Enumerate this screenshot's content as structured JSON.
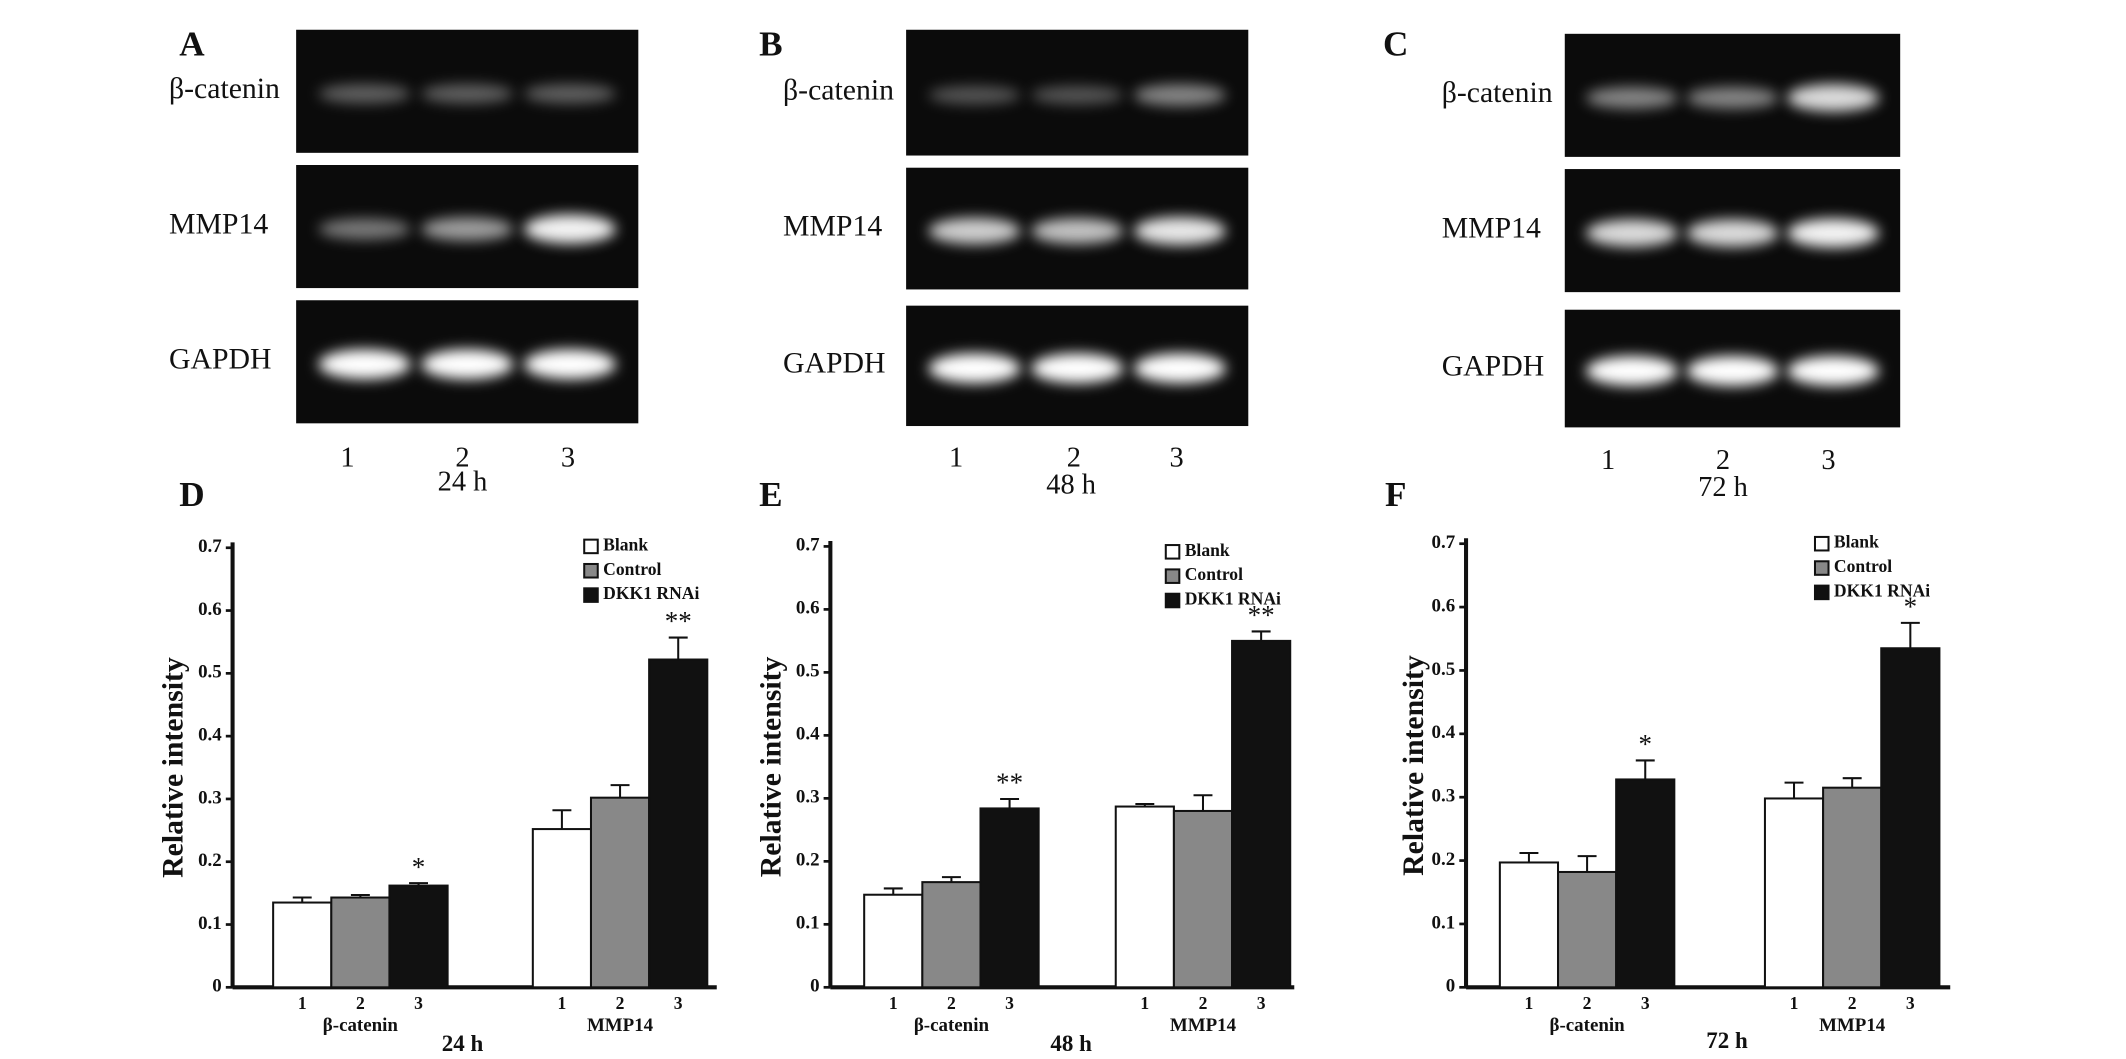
{
  "gels": [
    {
      "letter": "A",
      "rows": [
        "β-catenin",
        "MMP14",
        "GAPDH"
      ],
      "lanes": [
        "1",
        "2",
        "3"
      ],
      "time": "24 h"
    },
    {
      "letter": "B",
      "rows": [
        "β-catenin",
        "MMP14",
        "GAPDH"
      ],
      "lanes": [
        "1",
        "2",
        "3"
      ],
      "time": "48 h"
    },
    {
      "letter": "C",
      "rows": [
        "β-catenin",
        "MMP14",
        "GAPDH"
      ],
      "lanes": [
        "1",
        "2",
        "3"
      ],
      "time": "72 h"
    }
  ],
  "chart_data": [
    {
      "type": "bar",
      "letter": "D",
      "y_label": "Relative intensity",
      "x_label": "24 h",
      "categories": [
        "β-catenin",
        "MMP14"
      ],
      "lane_labels": [
        "1",
        "2",
        "3"
      ],
      "ylim": [
        0,
        0.7
      ],
      "yticks": [
        0,
        0.1,
        0.2,
        0.3,
        0.4,
        0.5,
        0.6,
        0.7
      ],
      "series": [
        {
          "name": "Blank",
          "color": "#ffffff",
          "values": [
            0.135,
            0.252
          ],
          "errors": [
            0.008,
            0.03
          ]
        },
        {
          "name": "Control",
          "color": "#888888",
          "values": [
            0.143,
            0.302
          ],
          "errors": [
            0.004,
            0.02
          ]
        },
        {
          "name": "DKK1 RNAi",
          "color": "#111111",
          "values": [
            0.162,
            0.522
          ],
          "errors": [
            0.004,
            0.035
          ],
          "significance": [
            "*",
            "**"
          ]
        }
      ]
    },
    {
      "type": "bar",
      "letter": "E",
      "y_label": "Relative intensity",
      "x_label": "48 h",
      "categories": [
        "β-catenin",
        "MMP14"
      ],
      "lane_labels": [
        "1",
        "2",
        "3"
      ],
      "ylim": [
        0,
        0.7
      ],
      "yticks": [
        0,
        0.1,
        0.2,
        0.3,
        0.4,
        0.5,
        0.6,
        0.7
      ],
      "series": [
        {
          "name": "Blank",
          "color": "#ffffff",
          "values": [
            0.147,
            0.287
          ],
          "errors": [
            0.01,
            0.004
          ]
        },
        {
          "name": "Control",
          "color": "#888888",
          "values": [
            0.167,
            0.28
          ],
          "errors": [
            0.008,
            0.025
          ]
        },
        {
          "name": "DKK1 RNAi",
          "color": "#111111",
          "values": [
            0.284,
            0.55
          ],
          "errors": [
            0.015,
            0.015
          ],
          "significance": [
            "**",
            "**"
          ]
        }
      ]
    },
    {
      "type": "bar",
      "letter": "F",
      "y_label": "Relative intensity",
      "x_label": "72 h",
      "categories": [
        "β-catenin",
        "MMP14"
      ],
      "lane_labels": [
        "1",
        "2",
        "3"
      ],
      "ylim": [
        0,
        0.7
      ],
      "yticks": [
        0,
        0.1,
        0.2,
        0.3,
        0.4,
        0.5,
        0.6,
        0.7
      ],
      "series": [
        {
          "name": "Blank",
          "color": "#ffffff",
          "values": [
            0.197,
            0.298
          ],
          "errors": [
            0.015,
            0.025
          ]
        },
        {
          "name": "Control",
          "color": "#888888",
          "values": [
            0.182,
            0.315
          ],
          "errors": [
            0.025,
            0.015
          ]
        },
        {
          "name": "DKK1 RNAi",
          "color": "#111111",
          "values": [
            0.328,
            0.535
          ],
          "errors": [
            0.03,
            0.04
          ],
          "significance": [
            "*",
            "*"
          ]
        }
      ]
    }
  ]
}
